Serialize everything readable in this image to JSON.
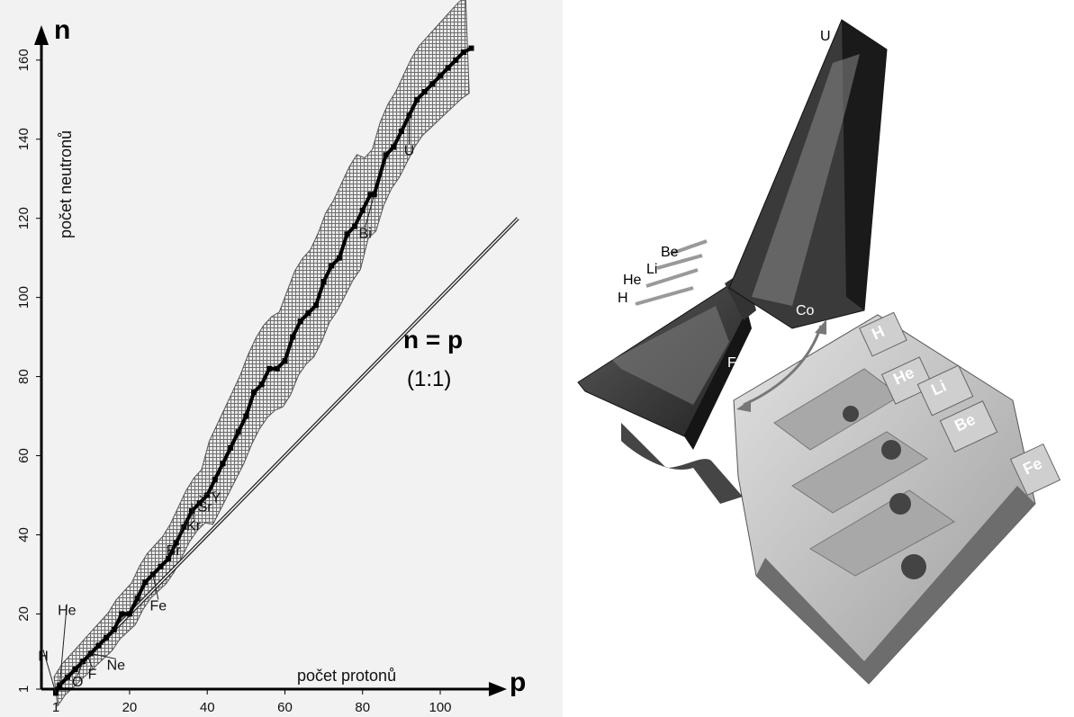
{
  "chart_data": {
    "type": "scatter",
    "x_axis": {
      "symbol": "p",
      "label": "počet protonů",
      "ticks": [
        1,
        20,
        40,
        60,
        80,
        100
      ],
      "range": [
        0,
        112
      ]
    },
    "y_axis": {
      "symbol": "n",
      "label": "počet neutronů",
      "ticks": [
        1,
        20,
        40,
        60,
        80,
        100,
        120,
        140,
        160
      ],
      "range": [
        0,
        172
      ]
    },
    "reference_line": {
      "equation": "n = p",
      "ratio": "(1:1)",
      "x": [
        1,
        120
      ],
      "y": [
        1,
        120
      ]
    },
    "series": [
      {
        "values": [
          [
            1,
            0
          ],
          [
            2,
            2
          ],
          [
            4,
            4
          ],
          [
            6,
            6
          ],
          [
            8,
            8
          ],
          [
            10,
            10
          ],
          [
            12,
            12
          ],
          [
            14,
            14
          ],
          [
            16,
            16
          ],
          [
            18,
            20
          ],
          [
            20,
            20
          ],
          [
            22,
            24
          ],
          [
            24,
            28
          ],
          [
            26,
            30
          ],
          [
            28,
            32
          ],
          [
            30,
            34
          ],
          [
            32,
            38
          ],
          [
            34,
            42
          ],
          [
            36,
            46
          ],
          [
            38,
            48
          ],
          [
            40,
            50
          ],
          [
            42,
            54
          ],
          [
            44,
            58
          ],
          [
            46,
            62
          ],
          [
            48,
            66
          ],
          [
            50,
            70
          ],
          [
            52,
            76
          ],
          [
            54,
            78
          ],
          [
            56,
            82
          ],
          [
            58,
            82
          ],
          [
            60,
            84
          ],
          [
            62,
            90
          ],
          [
            64,
            94
          ],
          [
            66,
            96
          ],
          [
            68,
            98
          ],
          [
            70,
            104
          ],
          [
            72,
            108
          ],
          [
            74,
            110
          ],
          [
            76,
            116
          ],
          [
            78,
            118
          ],
          [
            80,
            122
          ],
          [
            82,
            126
          ],
          [
            83,
            126
          ],
          [
            86,
            136
          ],
          [
            88,
            138
          ],
          [
            90,
            142
          ],
          [
            92,
            146
          ],
          [
            94,
            150
          ],
          [
            96,
            152
          ],
          [
            98,
            154
          ],
          [
            100,
            156
          ],
          [
            102,
            158
          ],
          [
            104,
            160
          ],
          [
            106,
            162
          ],
          [
            108,
            163
          ]
        ]
      }
    ],
    "element_labels": [
      {
        "text": "H",
        "x": 1,
        "y": 0
      },
      {
        "text": "He",
        "x": 2,
        "y": 2
      },
      {
        "text": "O",
        "x": 8,
        "y": 8
      },
      {
        "text": "F",
        "x": 9,
        "y": 10
      },
      {
        "text": "Ne",
        "x": 10,
        "y": 10
      },
      {
        "text": "Fe",
        "x": 26,
        "y": 30
      },
      {
        "text": "Br",
        "x": 35,
        "y": 44
      },
      {
        "text": "Kr",
        "x": 36,
        "y": 48
      },
      {
        "text": "Sr",
        "x": 38,
        "y": 50
      },
      {
        "text": "Y",
        "x": 39,
        "y": 50
      },
      {
        "text": "Bi",
        "x": 83,
        "y": 126
      },
      {
        "text": "U",
        "x": 92,
        "y": 146
      }
    ]
  },
  "illustration": {
    "labels": [
      "U",
      "Be",
      "Li",
      "He",
      "H",
      "Co",
      "Fe"
    ],
    "tiles": [
      "H",
      "He",
      "Li",
      "Be",
      "Fe"
    ]
  }
}
